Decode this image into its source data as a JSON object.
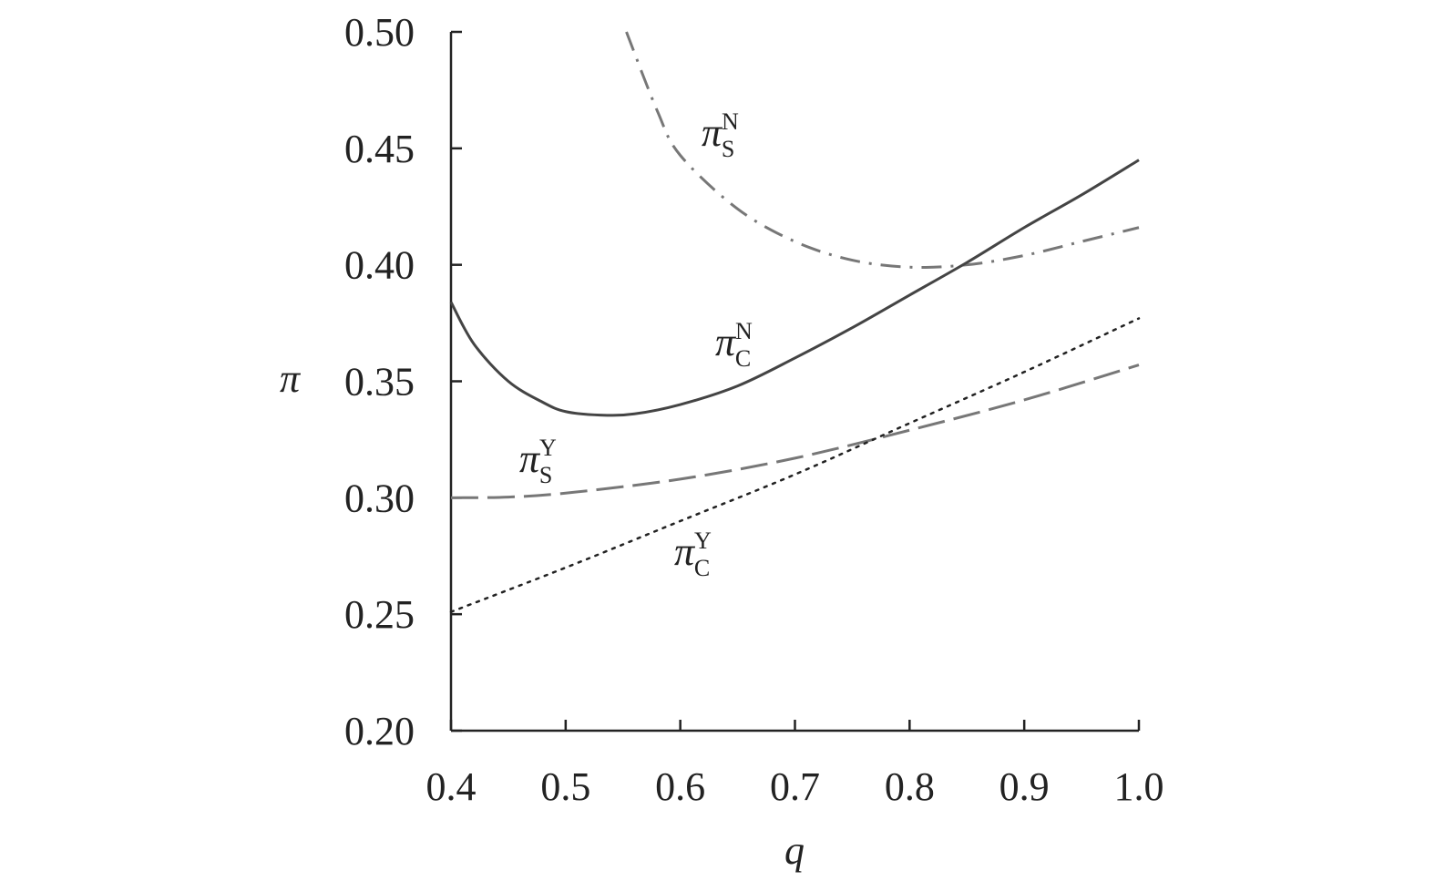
{
  "chart_data": {
    "type": "line",
    "xlabel": "q",
    "ylabel": "π",
    "xlim": [
      0.4,
      1.0
    ],
    "ylim": [
      0.2,
      0.5
    ],
    "xticks": [
      "0.4",
      "0.5",
      "0.6",
      "0.7",
      "0.8",
      "0.9",
      "1.0"
    ],
    "yticks": [
      "0.20",
      "0.25",
      "0.30",
      "0.35",
      "0.40",
      "0.45",
      "0.50"
    ],
    "grid": false,
    "series": [
      {
        "name": "π_S^N",
        "label": {
          "base": "π",
          "sup": "N",
          "sub": "S"
        },
        "style": "dash-dot",
        "color": "#777777",
        "x": [
          0.553,
          0.58,
          0.6,
          0.65,
          0.7,
          0.75,
          0.8,
          0.85,
          0.9,
          0.95,
          1.0
        ],
        "y": [
          0.5,
          0.466,
          0.447,
          0.424,
          0.41,
          0.402,
          0.399,
          0.4,
          0.404,
          0.41,
          0.416
        ]
      },
      {
        "name": "π_C^N",
        "label": {
          "base": "π",
          "sup": "N",
          "sub": "C"
        },
        "style": "solid",
        "color": "#444444",
        "x": [
          0.4,
          0.42,
          0.45,
          0.48,
          0.5,
          0.53,
          0.56,
          0.6,
          0.65,
          0.7,
          0.75,
          0.8,
          0.85,
          0.9,
          0.95,
          1.0
        ],
        "y": [
          0.384,
          0.366,
          0.35,
          0.341,
          0.337,
          0.3355,
          0.336,
          0.34,
          0.348,
          0.36,
          0.373,
          0.387,
          0.401,
          0.416,
          0.43,
          0.445
        ]
      },
      {
        "name": "π_S^Y",
        "label": {
          "base": "π",
          "sup": "Y",
          "sub": "S"
        },
        "style": "long-dash",
        "color": "#777777",
        "x": [
          0.4,
          0.45,
          0.5,
          0.6,
          0.7,
          0.8,
          0.9,
          1.0
        ],
        "y": [
          0.3,
          0.3003,
          0.302,
          0.308,
          0.317,
          0.329,
          0.342,
          0.357
        ]
      },
      {
        "name": "π_C^Y",
        "label": {
          "base": "π",
          "sup": "Y",
          "sub": "C"
        },
        "style": "dotted",
        "color": "#222222",
        "x": [
          0.4,
          0.5,
          0.6,
          0.7,
          0.8,
          0.9,
          1.0
        ],
        "y": [
          0.251,
          0.27,
          0.29,
          0.31,
          0.332,
          0.354,
          0.377
        ]
      }
    ]
  }
}
